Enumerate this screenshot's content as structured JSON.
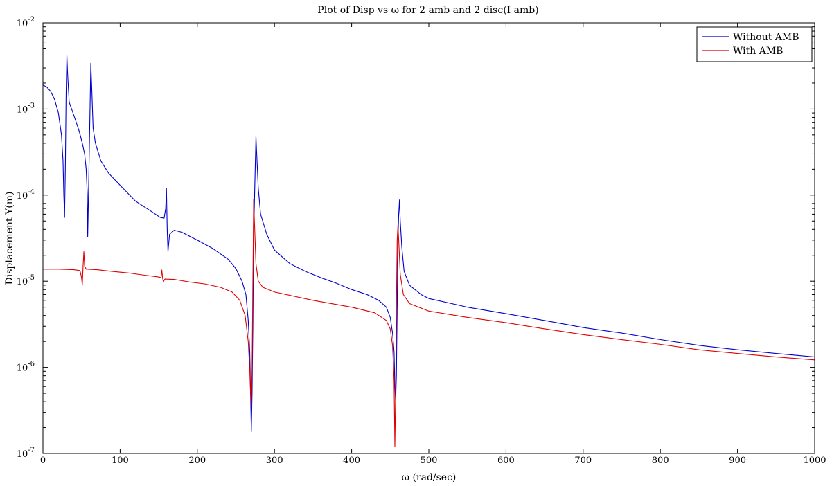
{
  "chart_data": {
    "type": "line",
    "title": "Plot of Disp vs ω for 2 amb and 2 disc(I amb)",
    "xlabel": "ω (rad/sec)",
    "ylabel": "Displacement Y(m)",
    "x_scale": "linear",
    "y_scale": "log",
    "xlim": [
      0,
      1000
    ],
    "ylim": [
      1e-07,
      0.01
    ],
    "x_ticks": [
      "0",
      "100",
      "200",
      "300",
      "400",
      "500",
      "600",
      "700",
      "800",
      "900",
      "1000"
    ],
    "y_ticks": [
      {
        "base": "10",
        "exp": "-7"
      },
      {
        "base": "10",
        "exp": "-6"
      },
      {
        "base": "10",
        "exp": "-5"
      },
      {
        "base": "10",
        "exp": "-4"
      },
      {
        "base": "10",
        "exp": "-3"
      },
      {
        "base": "10",
        "exp": "-2"
      }
    ],
    "grid": false,
    "legend_position": "top-right",
    "series": [
      {
        "name": "Without AMB",
        "color": "#0000cc",
        "points": [
          [
            0,
            0.0019
          ],
          [
            5,
            0.0018
          ],
          [
            10,
            0.0016
          ],
          [
            15,
            0.0013
          ],
          [
            20,
            0.0009
          ],
          [
            24,
            0.0005
          ],
          [
            26,
            0.00025
          ],
          [
            27,
            0.0001
          ],
          [
            28,
            5.5e-05
          ],
          [
            29,
            0.0002
          ],
          [
            30,
            0.0015
          ],
          [
            31,
            0.0042
          ],
          [
            32,
            0.0025
          ],
          [
            34,
            0.0012
          ],
          [
            38,
            0.00095
          ],
          [
            42,
            0.00075
          ],
          [
            47,
            0.00055
          ],
          [
            51,
            0.0004
          ],
          [
            54,
            0.0003
          ],
          [
            56,
            0.0002
          ],
          [
            57.5,
            0.0001
          ],
          [
            58,
            3.3e-05
          ],
          [
            59,
            0.0001
          ],
          [
            61,
            0.001
          ],
          [
            62,
            0.0034
          ],
          [
            63,
            0.002
          ],
          [
            65,
            0.0006
          ],
          [
            68,
            0.0004
          ],
          [
            75,
            0.00025
          ],
          [
            85,
            0.00018
          ],
          [
            100,
            0.00013
          ],
          [
            120,
            8.5e-05
          ],
          [
            140,
            6.5e-05
          ],
          [
            152,
            5.5e-05
          ],
          [
            157,
            5.4e-05
          ],
          [
            159,
            7e-05
          ],
          [
            160,
            0.00012
          ],
          [
            161,
            4e-05
          ],
          [
            162,
            2.2e-05
          ],
          [
            164,
            3.5e-05
          ],
          [
            170,
            3.9e-05
          ],
          [
            180,
            3.7e-05
          ],
          [
            200,
            3e-05
          ],
          [
            220,
            2.4e-05
          ],
          [
            240,
            1.8e-05
          ],
          [
            250,
            1.4e-05
          ],
          [
            258,
            1e-05
          ],
          [
            263,
            7e-06
          ],
          [
            266,
            3.5e-06
          ],
          [
            268,
            1.5e-06
          ],
          [
            269,
            5e-07
          ],
          [
            270,
            1.8e-07
          ],
          [
            271,
            5e-07
          ],
          [
            272,
            3e-06
          ],
          [
            273,
            3e-05
          ],
          [
            274,
            8e-05
          ],
          [
            275,
            0.0002
          ],
          [
            276,
            0.00048
          ],
          [
            277,
            0.0003
          ],
          [
            279,
            0.00012
          ],
          [
            282,
            6e-05
          ],
          [
            290,
            3.5e-05
          ],
          [
            300,
            2.3e-05
          ],
          [
            320,
            1.6e-05
          ],
          [
            340,
            1.3e-05
          ],
          [
            360,
            1.1e-05
          ],
          [
            380,
            9.5e-06
          ],
          [
            400,
            8e-06
          ],
          [
            420,
            7e-06
          ],
          [
            435,
            6e-06
          ],
          [
            445,
            5e-06
          ],
          [
            450,
            3.8e-06
          ],
          [
            453,
            2.5e-06
          ],
          [
            455,
            1.5e-06
          ],
          [
            456,
            6e-07
          ],
          [
            457,
            4e-07
          ],
          [
            458,
            8e-07
          ],
          [
            459,
            5e-06
          ],
          [
            460,
            3e-05
          ],
          [
            461,
            6e-05
          ],
          [
            462,
            8.8e-05
          ],
          [
            463,
            5e-05
          ],
          [
            465,
            2.5e-05
          ],
          [
            468,
            1.3e-05
          ],
          [
            475,
            9e-06
          ],
          [
            490,
            7e-06
          ],
          [
            500,
            6.3e-06
          ],
          [
            550,
            5e-06
          ],
          [
            600,
            4.2e-06
          ],
          [
            650,
            3.5e-06
          ],
          [
            700,
            2.9e-06
          ],
          [
            750,
            2.5e-06
          ],
          [
            800,
            2.1e-06
          ],
          [
            850,
            1.8e-06
          ],
          [
            900,
            1.6e-06
          ],
          [
            950,
            1.45e-06
          ],
          [
            1000,
            1.32e-06
          ]
        ]
      },
      {
        "name": "With AMB",
        "color": "#dd0000",
        "points": [
          [
            0,
            1.38e-05
          ],
          [
            20,
            1.38e-05
          ],
          [
            40,
            1.36e-05
          ],
          [
            48,
            1.33e-05
          ],
          [
            50,
            1.1e-05
          ],
          [
            51,
            9e-06
          ],
          [
            52,
            1.5e-05
          ],
          [
            53,
            2.2e-05
          ],
          [
            54,
            1.5e-05
          ],
          [
            56,
            1.38e-05
          ],
          [
            70,
            1.36e-05
          ],
          [
            90,
            1.3e-05
          ],
          [
            110,
            1.25e-05
          ],
          [
            130,
            1.18e-05
          ],
          [
            150,
            1.12e-05
          ],
          [
            153,
            1.1e-05
          ],
          [
            154,
            1.35e-05
          ],
          [
            155,
            1.1e-05
          ],
          [
            156,
            9.8e-06
          ],
          [
            158,
            1.06e-05
          ],
          [
            170,
            1.05e-05
          ],
          [
            190,
            9.8e-06
          ],
          [
            210,
            9.3e-06
          ],
          [
            230,
            8.5e-06
          ],
          [
            245,
            7.5e-06
          ],
          [
            255,
            6e-06
          ],
          [
            262,
            4e-06
          ],
          [
            266,
            2e-06
          ],
          [
            268,
            9e-07
          ],
          [
            269,
            5e-07
          ],
          [
            270,
            3.5e-07
          ],
          [
            271,
            1e-06
          ],
          [
            272,
            1e-05
          ],
          [
            273,
            9e-05
          ],
          [
            274,
            5e-05
          ],
          [
            276,
            1.6e-05
          ],
          [
            279,
            1e-05
          ],
          [
            285,
            8.5e-06
          ],
          [
            300,
            7.5e-06
          ],
          [
            350,
            6e-06
          ],
          [
            400,
            5e-06
          ],
          [
            430,
            4.3e-06
          ],
          [
            445,
            3.5e-06
          ],
          [
            450,
            2.8e-06
          ],
          [
            453,
            1.8e-06
          ],
          [
            455,
            7e-07
          ],
          [
            456,
            1.2e-07
          ],
          [
            457,
            5e-07
          ],
          [
            458,
            5e-06
          ],
          [
            459,
            3e-05
          ],
          [
            460,
            4.5e-05
          ],
          [
            461,
            3e-05
          ],
          [
            463,
            1.2e-05
          ],
          [
            467,
            7e-06
          ],
          [
            475,
            5.5e-06
          ],
          [
            500,
            4.5e-06
          ],
          [
            550,
            3.8e-06
          ],
          [
            600,
            3.3e-06
          ],
          [
            650,
            2.8e-06
          ],
          [
            700,
            2.4e-06
          ],
          [
            750,
            2.1e-06
          ],
          [
            800,
            1.85e-06
          ],
          [
            850,
            1.6e-06
          ],
          [
            900,
            1.45e-06
          ],
          [
            950,
            1.32e-06
          ],
          [
            1000,
            1.22e-06
          ]
        ]
      }
    ]
  }
}
